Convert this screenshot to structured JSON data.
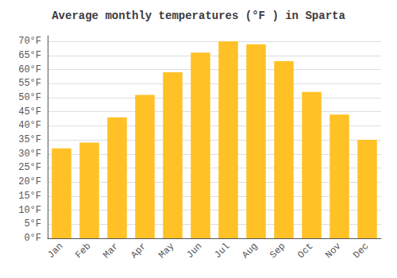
{
  "chart_data": {
    "type": "bar",
    "title": "Average monthly temperatures (°F ) in Sparta",
    "categories": [
      "Jan",
      "Feb",
      "Mar",
      "Apr",
      "May",
      "Jun",
      "Jul",
      "Aug",
      "Sep",
      "Oct",
      "Nov",
      "Dec"
    ],
    "values": [
      32,
      34,
      43,
      51,
      59,
      66,
      70,
      69,
      63,
      52,
      44,
      35
    ],
    "color": "#FFC125",
    "ylim": [
      0,
      72
    ],
    "yticks": [
      {
        "value": 0,
        "label": "0°F"
      },
      {
        "value": 5,
        "label": "5°F"
      },
      {
        "value": 10,
        "label": "10°F"
      },
      {
        "value": 15,
        "label": "15°F"
      },
      {
        "value": 20,
        "label": "20°F"
      },
      {
        "value": 25,
        "label": "25°F"
      },
      {
        "value": 30,
        "label": "30°F"
      },
      {
        "value": 35,
        "label": "35°F"
      },
      {
        "value": 40,
        "label": "40°F"
      },
      {
        "value": 45,
        "label": "45°F"
      },
      {
        "value": 50,
        "label": "50°F"
      },
      {
        "value": 55,
        "label": "55°F"
      },
      {
        "value": 60,
        "label": "60°F"
      },
      {
        "value": 65,
        "label": "65°F"
      },
      {
        "value": 70,
        "label": "70°F"
      }
    ],
    "grid": true
  }
}
